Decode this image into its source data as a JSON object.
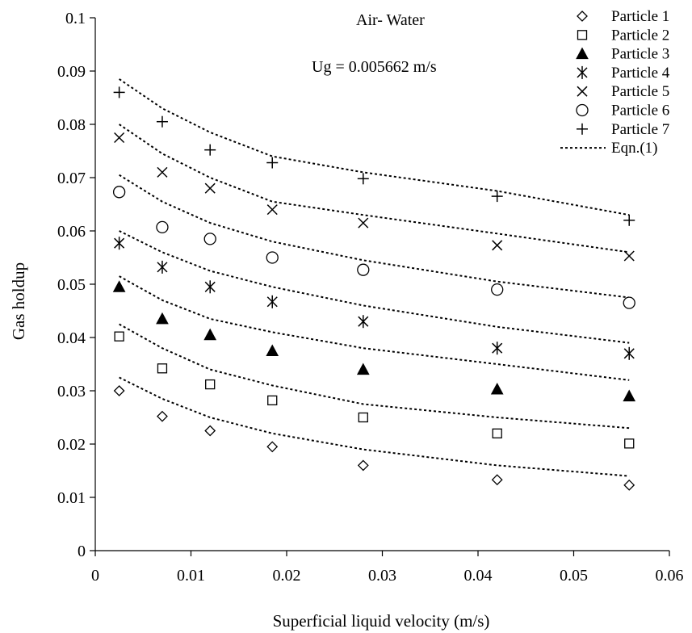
{
  "chart_data": {
    "type": "scatter",
    "title": "",
    "xlabel": "Superficial liquid velocity (m/s)",
    "ylabel": "Gas holdup",
    "xlim": [
      0,
      0.06
    ],
    "ylim": [
      0,
      0.1
    ],
    "xticks": [
      0,
      0.01,
      0.02,
      0.03,
      0.04,
      0.05,
      0.06
    ],
    "xtick_labels": [
      "0",
      "0.01",
      "0.02",
      "0.03",
      "0.04",
      "0.05",
      "0.06"
    ],
    "yticks": [
      0,
      0.01,
      0.02,
      0.03,
      0.04,
      0.05,
      0.06,
      0.07,
      0.08,
      0.09,
      0.1
    ],
    "ytick_labels": [
      "0",
      "0.01",
      "0.02",
      "0.03",
      "0.04",
      "0.05",
      "0.06",
      "0.07",
      "0.08",
      "0.09",
      "0.1"
    ],
    "grid": false,
    "legend_position": "top-right",
    "annotations": [
      "Air- Water",
      "Ug = 0.005662 m/s"
    ],
    "x": [
      0.0025,
      0.007,
      0.012,
      0.0185,
      0.028,
      0.042,
      0.0558
    ],
    "series": [
      {
        "name": "Particle 1",
        "marker": "diamond-open",
        "values": [
          0.03,
          0.0252,
          0.0225,
          0.0195,
          0.016,
          0.0133,
          0.0123
        ]
      },
      {
        "name": "Particle 2",
        "marker": "square-open",
        "values": [
          0.0402,
          0.0342,
          0.0312,
          0.0282,
          0.025,
          0.022,
          0.0201
        ]
      },
      {
        "name": "Particle 3",
        "marker": "triangle-filled",
        "values": [
          0.0495,
          0.0435,
          0.0405,
          0.0375,
          0.034,
          0.0303,
          0.029
        ]
      },
      {
        "name": "Particle 4",
        "marker": "asterisk",
        "values": [
          0.0577,
          0.0532,
          0.0495,
          0.0467,
          0.043,
          0.038,
          0.037
        ]
      },
      {
        "name": "Particle 5",
        "marker": "x",
        "values": [
          0.0775,
          0.071,
          0.068,
          0.064,
          0.0615,
          0.0573,
          0.0553
        ]
      },
      {
        "name": "Particle 6",
        "marker": "circle-open",
        "values": [
          0.0673,
          0.0607,
          0.0585,
          0.055,
          0.0527,
          0.049,
          0.0465
        ]
      },
      {
        "name": "Particle 7",
        "marker": "plus",
        "values": [
          0.086,
          0.0805,
          0.0752,
          0.0728,
          0.0698,
          0.0665,
          0.062
        ]
      }
    ],
    "fit_lines": {
      "name": "Eqn.(1)",
      "style": "dotted",
      "x": [
        0.0025,
        0.007,
        0.012,
        0.0185,
        0.028,
        0.042,
        0.0558
      ],
      "curves": [
        [
          0.0325,
          0.0285,
          0.025,
          0.022,
          0.019,
          0.016,
          0.014
        ],
        [
          0.0425,
          0.038,
          0.034,
          0.031,
          0.0275,
          0.025,
          0.023
        ],
        [
          0.0515,
          0.047,
          0.0435,
          0.041,
          0.038,
          0.035,
          0.032
        ],
        [
          0.06,
          0.056,
          0.0525,
          0.0495,
          0.046,
          0.042,
          0.039
        ],
        [
          0.0705,
          0.0655,
          0.0615,
          0.058,
          0.0545,
          0.0505,
          0.0475
        ],
        [
          0.08,
          0.0745,
          0.07,
          0.0655,
          0.063,
          0.0595,
          0.056
        ],
        [
          0.0885,
          0.083,
          0.0785,
          0.074,
          0.071,
          0.0675,
          0.063
        ]
      ]
    }
  }
}
